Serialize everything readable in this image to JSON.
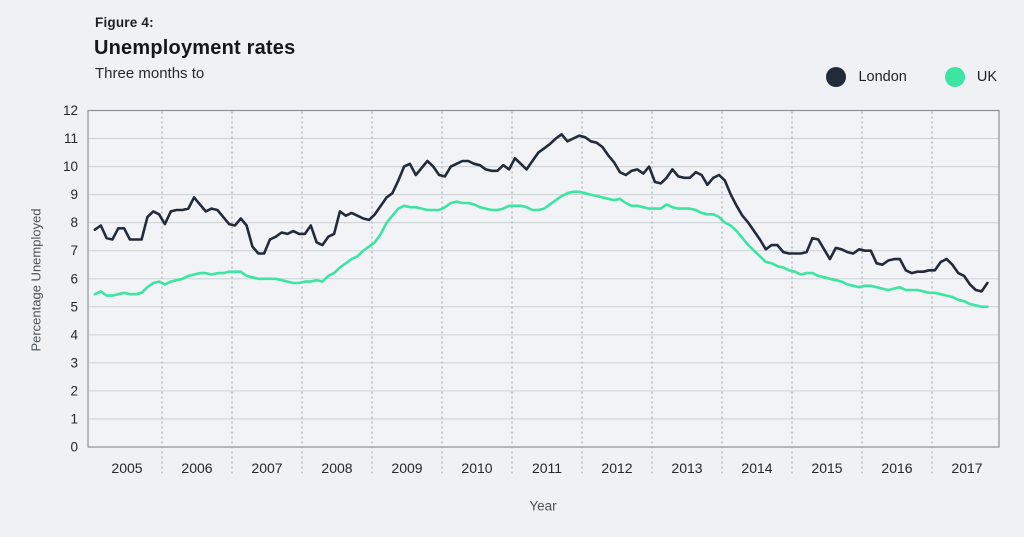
{
  "figure": {
    "label": "Figure 4:",
    "title": "Unemployment rates",
    "subtitle": "Three months to"
  },
  "legend": {
    "items": [
      {
        "label": "London",
        "color": "#222b3a"
      },
      {
        "label": "UK",
        "color": "#3ce5a2"
      }
    ]
  },
  "colors": {
    "page_bg": "#eff1f4",
    "plot_bg": "#f1f3f6",
    "grid": "#ccd1d6",
    "grid_dotted": "#a9aeb4",
    "border": "#8b9198",
    "tick_text": "#23272d",
    "axis_title_text": "#4c5258",
    "london_line": "#222b3a",
    "uk_line": "#3ce5a2"
  },
  "chart_data": {
    "type": "line",
    "title": "Unemployment rates",
    "subtitle": "Three months to",
    "xlabel": "Year",
    "ylabel": "Percentage Unemployed",
    "ylim": [
      0,
      12
    ],
    "y_tick_step": 1,
    "grid": true,
    "legend_position": "top-right",
    "x_tick_labels": [
      "2005",
      "2006",
      "2007",
      "2008",
      "2009",
      "2010",
      "2011",
      "2012",
      "2013",
      "2014",
      "2015",
      "2016",
      "2017"
    ],
    "x_resolution": "monthly",
    "x_range": {
      "first_point": "2005-01",
      "last_point": "2017-10"
    },
    "series": [
      {
        "name": "London",
        "color": "#222b3a",
        "values": [
          7.75,
          7.9,
          7.45,
          7.4,
          7.8,
          7.8,
          7.4,
          7.4,
          7.4,
          8.2,
          8.4,
          8.3,
          7.95,
          8.4,
          8.45,
          8.45,
          8.5,
          8.9,
          8.65,
          8.4,
          8.5,
          8.45,
          8.2,
          7.95,
          7.9,
          8.15,
          7.9,
          7.15,
          6.9,
          6.9,
          7.4,
          7.5,
          7.65,
          7.6,
          7.7,
          7.6,
          7.6,
          7.9,
          7.3,
          7.2,
          7.5,
          7.6,
          8.4,
          8.25,
          8.35,
          8.25,
          8.15,
          8.1,
          8.3,
          8.6,
          8.9,
          9.05,
          9.5,
          10.0,
          10.1,
          9.7,
          9.95,
          10.2,
          10.0,
          9.7,
          9.65,
          10.0,
          10.1,
          10.2,
          10.2,
          10.1,
          10.05,
          9.9,
          9.85,
          9.85,
          10.05,
          9.9,
          10.3,
          10.1,
          9.9,
          10.2,
          10.5,
          10.65,
          10.8,
          11.0,
          11.15,
          10.9,
          11.0,
          11.1,
          11.05,
          10.9,
          10.85,
          10.7,
          10.4,
          10.15,
          9.8,
          9.7,
          9.85,
          9.9,
          9.75,
          10.0,
          9.45,
          9.4,
          9.6,
          9.9,
          9.65,
          9.6,
          9.6,
          9.8,
          9.7,
          9.35,
          9.6,
          9.7,
          9.5,
          9.0,
          8.6,
          8.25,
          8.0,
          7.7,
          7.4,
          7.05,
          7.2,
          7.2,
          6.95,
          6.9,
          6.9,
          6.9,
          6.95,
          7.45,
          7.4,
          7.05,
          6.7,
          7.1,
          7.05,
          6.95,
          6.9,
          7.05,
          7.0,
          7.0,
          6.55,
          6.5,
          6.65,
          6.7,
          6.7,
          6.3,
          6.2,
          6.25,
          6.25,
          6.3,
          6.3,
          6.6,
          6.7,
          6.5,
          6.2,
          6.1,
          5.8,
          5.6,
          5.55,
          5.85
        ]
      },
      {
        "name": "UK",
        "color": "#3ce5a2",
        "values": [
          5.45,
          5.55,
          5.4,
          5.4,
          5.45,
          5.5,
          5.45,
          5.45,
          5.5,
          5.7,
          5.85,
          5.9,
          5.8,
          5.9,
          5.95,
          6.0,
          6.1,
          6.15,
          6.2,
          6.2,
          6.15,
          6.2,
          6.2,
          6.25,
          6.25,
          6.25,
          6.1,
          6.05,
          6.0,
          6.0,
          6.0,
          6.0,
          5.95,
          5.9,
          5.85,
          5.85,
          5.9,
          5.9,
          5.95,
          5.9,
          6.1,
          6.2,
          6.4,
          6.55,
          6.7,
          6.8,
          7.0,
          7.15,
          7.3,
          7.6,
          8.0,
          8.25,
          8.5,
          8.6,
          8.55,
          8.55,
          8.5,
          8.45,
          8.45,
          8.45,
          8.55,
          8.7,
          8.75,
          8.7,
          8.7,
          8.65,
          8.55,
          8.5,
          8.45,
          8.45,
          8.5,
          8.6,
          8.6,
          8.6,
          8.55,
          8.45,
          8.45,
          8.5,
          8.65,
          8.8,
          8.95,
          9.05,
          9.1,
          9.1,
          9.05,
          9.0,
          8.95,
          8.9,
          8.85,
          8.8,
          8.85,
          8.7,
          8.6,
          8.6,
          8.55,
          8.5,
          8.5,
          8.5,
          8.65,
          8.55,
          8.5,
          8.5,
          8.5,
          8.45,
          8.35,
          8.3,
          8.3,
          8.2,
          8.0,
          7.9,
          7.7,
          7.45,
          7.2,
          7.0,
          6.8,
          6.6,
          6.55,
          6.45,
          6.4,
          6.3,
          6.25,
          6.15,
          6.2,
          6.2,
          6.1,
          6.05,
          6.0,
          5.95,
          5.9,
          5.8,
          5.75,
          5.7,
          5.75,
          5.75,
          5.7,
          5.65,
          5.6,
          5.65,
          5.7,
          5.6,
          5.6,
          5.6,
          5.55,
          5.5,
          5.5,
          5.45,
          5.4,
          5.35,
          5.25,
          5.2,
          5.1,
          5.05,
          5.0,
          5.0
        ]
      }
    ]
  }
}
